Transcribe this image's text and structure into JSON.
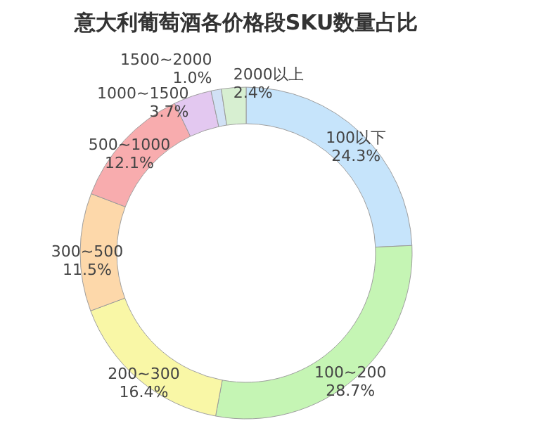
{
  "chart_data": {
    "type": "donut",
    "title": "意大利葡萄酒各价格段SKU数量占比",
    "categories": [
      "100以下",
      "100~200",
      "200~300",
      "300~500",
      "500~1000",
      "1000~1500",
      "1500~2000",
      "2000以上"
    ],
    "values": [
      24.3,
      28.7,
      16.4,
      11.5,
      12.1,
      3.7,
      1.0,
      2.4
    ],
    "value_labels": [
      "24.3%",
      "28.7%",
      "16.4%",
      "11.5%",
      "12.1%",
      "3.7%",
      "1.0%",
      "2.4%"
    ],
    "colors": [
      "#c4e3fb",
      "#c2f5b0",
      "#f9f7a2",
      "#fdd6a6",
      "#f8a8aa",
      "#e2c6f0",
      "#cfe0f5",
      "#d5efcf"
    ]
  }
}
